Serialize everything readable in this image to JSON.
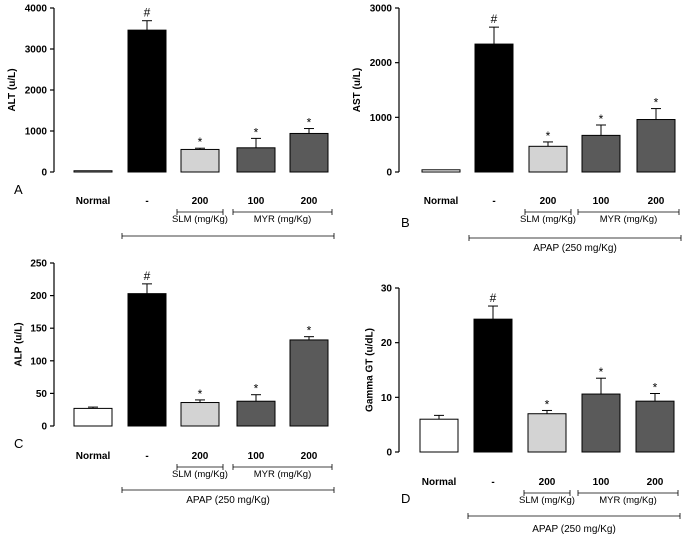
{
  "figure": {
    "treatment_label": "APAP (250 mg/Kg)",
    "groups": [
      {
        "label": "SLM (mg/Kg)",
        "categories": [
          2
        ]
      },
      {
        "label": "MYR (mg/Kg)",
        "categories": [
          3,
          4
        ]
      }
    ],
    "colors": {
      "Normal": "#ffffff",
      "APAP": "#000000",
      "SLM": "#d3d3d3",
      "MYR": "#5a5a5a"
    }
  },
  "chart_data": [
    {
      "type": "bar",
      "panel": "A",
      "ylabel": "ALT (u/L)",
      "ylim": [
        0,
        4000
      ],
      "yticks": [
        0,
        1000,
        2000,
        3000,
        4000
      ],
      "categories": [
        "Normal",
        "-",
        "200",
        "100",
        "200"
      ],
      "fills": [
        "Normal",
        "APAP",
        "SLM",
        "MYR",
        "MYR"
      ],
      "values": [
        30,
        3460,
        550,
        590,
        940
      ],
      "errors": [
        0,
        230,
        30,
        230,
        120
      ],
      "markers": [
        "",
        "#",
        "*",
        "*",
        "*"
      ],
      "show_apap": true
    },
    {
      "type": "bar",
      "panel": "B",
      "ylabel": "AST (u/L)",
      "ylim": [
        0,
        3000
      ],
      "yticks": [
        0,
        1000,
        2000,
        3000
      ],
      "categories": [
        "Normal",
        "-",
        "200",
        "100",
        "200"
      ],
      "fills": [
        "Normal",
        "APAP",
        "SLM",
        "MYR",
        "MYR"
      ],
      "values": [
        40,
        2340,
        470,
        670,
        960
      ],
      "errors": [
        0,
        310,
        80,
        190,
        200
      ],
      "markers": [
        "",
        "#",
        "*",
        "*",
        "*"
      ],
      "show_apap": true
    },
    {
      "type": "bar",
      "panel": "C",
      "ylabel": "ALP (u/L)",
      "ylim": [
        0,
        250
      ],
      "yticks": [
        0,
        50,
        100,
        150,
        200,
        250
      ],
      "categories": [
        "Normal",
        "-",
        "200",
        "100",
        "200"
      ],
      "fills": [
        "Normal",
        "APAP",
        "SLM",
        "MYR",
        "MYR"
      ],
      "values": [
        27,
        203,
        36,
        38,
        132
      ],
      "errors": [
        2,
        15,
        4,
        10,
        5
      ],
      "markers": [
        "",
        "#",
        "*",
        "*",
        "*"
      ],
      "show_apap": true
    },
    {
      "type": "bar",
      "panel": "D",
      "ylabel": "Gamma GT (u/dL)",
      "ylim": [
        0,
        30
      ],
      "yticks": [
        0,
        10,
        20,
        30
      ],
      "categories": [
        "Normal",
        "-",
        "200",
        "100",
        "200"
      ],
      "fills": [
        "Normal",
        "APAP",
        "SLM",
        "MYR",
        "MYR"
      ],
      "values": [
        6,
        24.3,
        7,
        10.6,
        9.3
      ],
      "errors": [
        0.7,
        2.4,
        0.6,
        2.9,
        1.4
      ],
      "markers": [
        "",
        "#",
        "*",
        "*",
        "*"
      ],
      "show_apap": true
    }
  ]
}
